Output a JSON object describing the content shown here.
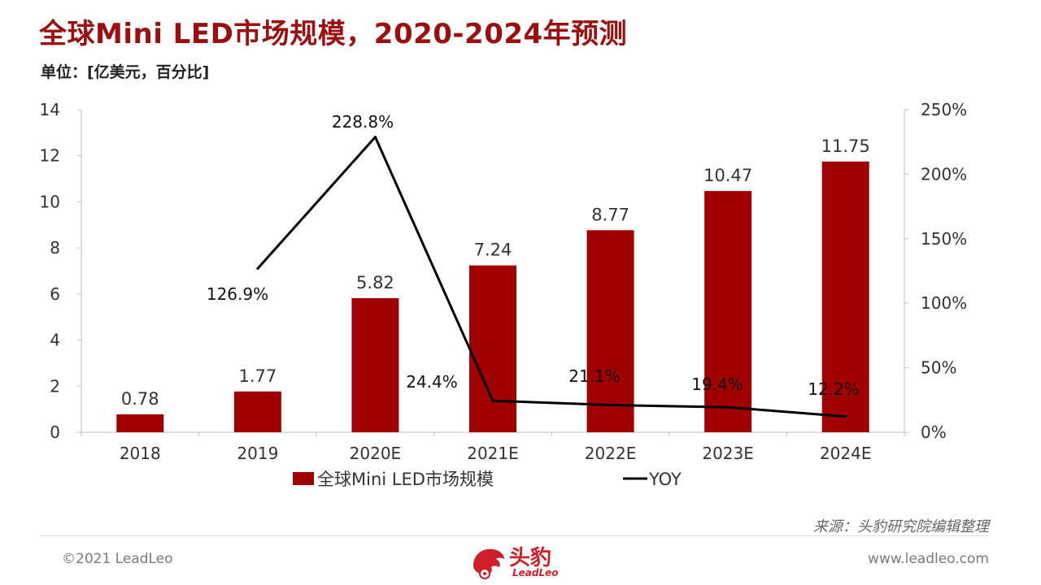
{
  "header": {
    "title": "全球Mini LED市场规模，2020-2024年预测",
    "unit": "单位：[亿美元，百分比]"
  },
  "chart_data": {
    "type": "bar",
    "title": "全球Mini LED市场规模，2020-2024年预测",
    "categories": [
      "2018",
      "2019",
      "2020E",
      "2021E",
      "2022E",
      "2023E",
      "2024E"
    ],
    "series": [
      {
        "name": "全球Mini LED市场规模",
        "type": "bar",
        "axis": "left",
        "values": [
          0.78,
          1.77,
          5.82,
          7.24,
          8.77,
          10.47,
          11.75
        ],
        "labels": [
          "0.78",
          "1.77",
          "5.82",
          "7.24",
          "8.77",
          "10.47",
          "11.75"
        ]
      },
      {
        "name": "YOY",
        "type": "line",
        "axis": "right",
        "values": [
          null,
          126.9,
          228.8,
          24.4,
          21.1,
          19.4,
          12.2
        ],
        "labels": [
          "",
          "126.9%",
          "228.8%",
          "24.4%",
          "21.1%",
          "19.4%",
          "12.2%"
        ]
      }
    ],
    "y_left": {
      "ylim": [
        0,
        14
      ],
      "ticks": [
        "0",
        "2",
        "4",
        "6",
        "8",
        "10",
        "12",
        "14"
      ]
    },
    "y_right": {
      "ylim": [
        0,
        250
      ],
      "ticks": [
        "0%",
        "50%",
        "100%",
        "150%",
        "200%",
        "250%"
      ]
    },
    "legend": [
      "全球Mini LED市场规模",
      "YOY"
    ],
    "legend_position": "bottom",
    "grid": false,
    "colors": {
      "bar": "#a00000",
      "line": "#000000"
    }
  },
  "footer": {
    "source": "来源：头豹研究院编辑整理",
    "copyright": "©2021 LeadLeo",
    "website": "www.leadleo.com",
    "logo_text": "头豹",
    "logo_sub": "LeadLeo"
  },
  "colors": {
    "accent": "#9b0f0f",
    "logo": "#d01f2b"
  }
}
